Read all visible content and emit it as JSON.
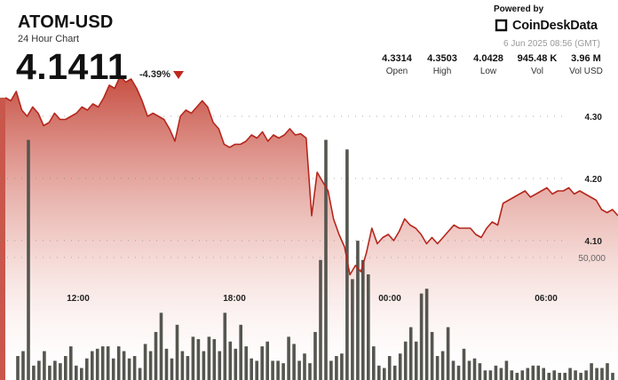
{
  "header": {
    "symbol": "ATOM-USD",
    "subtitle": "24 Hour Chart",
    "price": "4.1411",
    "change": "-4.39%"
  },
  "branding": {
    "powered_by": "Powered by",
    "name": "CoinDeskData",
    "timestamp": "6 Jun 2025 08:56 (GMT)"
  },
  "stats": [
    {
      "value": "4.3314",
      "label": "Open"
    },
    {
      "value": "4.3503",
      "label": "High"
    },
    {
      "value": "4.0428",
      "label": "Low"
    },
    {
      "value": "945.48 K",
      "label": "Vol"
    },
    {
      "value": "3.96 M",
      "label": "Vol USD"
    }
  ],
  "colors": {
    "line": "#b5271d",
    "area_top": "#c0392b",
    "area_bottom": "#ffffff",
    "volume_bar": "#55564f",
    "down": "#c0281c"
  },
  "chart_data": {
    "type": "area",
    "x_ticks": [
      "12:00",
      "18:00",
      "00:00",
      "06:00"
    ],
    "y_ticks": [
      4.3,
      4.2,
      4.1
    ],
    "y_tick_labels": [
      "4.30",
      "4.20",
      "4.10"
    ],
    "volume_tick_label": "50,000",
    "volume_tick_value": 50000,
    "grid": true,
    "price": [
      4.33,
      4.325,
      4.34,
      4.31,
      4.3,
      4.315,
      4.305,
      4.285,
      4.29,
      4.305,
      4.295,
      4.295,
      4.3,
      4.305,
      4.315,
      4.31,
      4.32,
      4.315,
      4.33,
      4.35,
      4.345,
      4.365,
      4.355,
      4.36,
      4.345,
      4.325,
      4.3,
      4.305,
      4.3,
      4.295,
      4.28,
      4.26,
      4.3,
      4.31,
      4.305,
      4.315,
      4.325,
      4.315,
      4.29,
      4.28,
      4.255,
      4.25,
      4.255,
      4.255,
      4.26,
      4.27,
      4.265,
      4.275,
      4.26,
      4.27,
      4.265,
      4.27,
      4.28,
      4.27,
      4.272,
      4.265,
      4.14,
      4.21,
      4.195,
      4.18,
      4.135,
      4.11,
      4.09,
      4.045,
      4.06,
      4.05,
      4.08,
      4.12,
      4.095,
      4.105,
      4.11,
      4.1,
      4.115,
      4.135,
      4.125,
      4.12,
      4.11,
      4.095,
      4.105,
      4.095,
      4.105,
      4.115,
      4.125,
      4.12,
      4.12,
      4.12,
      4.11,
      4.105,
      4.12,
      4.13,
      4.125,
      4.16,
      4.165,
      4.17,
      4.175,
      4.18,
      4.17,
      4.175,
      4.18,
      4.185,
      4.175,
      4.18,
      4.18,
      4.185,
      4.175,
      4.18,
      4.175,
      4.17,
      4.165,
      4.15,
      4.145,
      4.15,
      4.14
    ],
    "volume": [
      10000,
      12000,
      100000,
      6000,
      8000,
      12000,
      6000,
      8000,
      7000,
      10000,
      14000,
      6000,
      5000,
      9000,
      12000,
      13000,
      14000,
      14000,
      9000,
      14000,
      12000,
      9000,
      10000,
      5000,
      15000,
      12000,
      20000,
      28000,
      13000,
      9000,
      23000,
      12000,
      10000,
      18000,
      17000,
      12000,
      18000,
      17000,
      12000,
      28000,
      16000,
      13000,
      23000,
      14000,
      9000,
      8000,
      14000,
      16000,
      8000,
      8000,
      7000,
      18000,
      15000,
      8000,
      11000,
      7000,
      20000,
      50000,
      100000,
      8000,
      10000,
      11000,
      96000,
      42000,
      58000,
      50000,
      44000,
      14000,
      6000,
      5000,
      10000,
      6000,
      11000,
      16000,
      22000,
      16000,
      36000,
      38000,
      20000,
      10000,
      12000,
      22000,
      8000,
      6000,
      13000,
      8000,
      9000,
      7000,
      4000,
      4000,
      6000,
      5000,
      8000,
      4000,
      3000,
      4000,
      5000,
      6000,
      6000,
      5000,
      3000,
      4000,
      3000,
      3000,
      5000,
      4000,
      3000,
      4000,
      7000,
      5000,
      5000,
      7000,
      3000
    ]
  }
}
